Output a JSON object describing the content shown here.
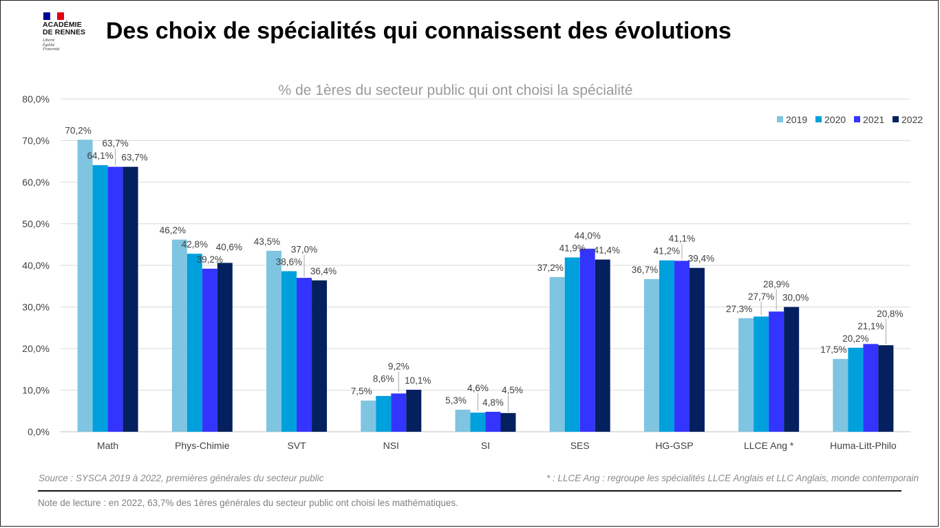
{
  "logo": {
    "name": "ACADÉMIE\nDE RENNES",
    "motto": "Liberté\nÉgalité\nFraternité",
    "flag_colors": [
      "#000091",
      "#ffffff",
      "#e1000f"
    ]
  },
  "page": {
    "title": "Des choix de spécialités qui connaissent des évolutions"
  },
  "chart_data": {
    "type": "bar",
    "title": "% de 1ères du secteur public qui ont choisi la spécialité",
    "xlabel": "",
    "ylabel": "",
    "ylim": [
      0,
      80
    ],
    "yticks": [
      "0,0%",
      "10,0%",
      "20,0%",
      "30,0%",
      "40,0%",
      "50,0%",
      "60,0%",
      "70,0%",
      "80,0%"
    ],
    "grid": true,
    "legend_position": "top-right",
    "categories": [
      "Math",
      "Phys-Chimie",
      "SVT",
      "NSI",
      "SI",
      "SES",
      "HG-GSP",
      "LLCE Ang *",
      "Huma-Litt-Philo"
    ],
    "series": [
      {
        "name": "2019",
        "color": "#7fc4e0",
        "values": [
          70.2,
          46.2,
          43.5,
          7.5,
          5.3,
          37.2,
          36.7,
          27.3,
          17.5
        ],
        "labels": [
          "70,2%",
          "46,2%",
          "43,5%",
          "7,5%",
          "5,3%",
          "37,2%",
          "36,7%",
          "27,3%",
          "17,5%"
        ]
      },
      {
        "name": "2020",
        "color": "#00a0dc",
        "values": [
          64.1,
          42.8,
          38.6,
          8.6,
          4.6,
          41.9,
          41.2,
          27.7,
          20.2
        ],
        "labels": [
          "64,1%",
          "42,8%",
          "38,6%",
          "8,6%",
          "4,6%",
          "41,9%",
          "41,2%",
          "27,7%",
          "20,2%"
        ]
      },
      {
        "name": "2021",
        "color": "#3434ff",
        "values": [
          63.7,
          39.2,
          37.0,
          9.2,
          4.8,
          44.0,
          41.1,
          28.9,
          21.1
        ],
        "labels": [
          "63,7%",
          "39,2%",
          "37,0%",
          "9,2%",
          "4,8%",
          "44,0%",
          "41,1%",
          "28,9%",
          "21,1%"
        ]
      },
      {
        "name": "2022",
        "color": "#05205e",
        "values": [
          63.7,
          40.6,
          36.4,
          10.1,
          4.5,
          41.4,
          39.4,
          30.0,
          20.8
        ],
        "labels": [
          "63,7%",
          "40,6%",
          "36,4%",
          "10,1%",
          "4,5%",
          "41,4%",
          "39,4%",
          "30,0%",
          "20,8%"
        ]
      }
    ]
  },
  "footer": {
    "source": "Source : SYSCA 2019 à 2022, premières générales du secteur public",
    "footnote": "* : LLCE Ang : regroupe les spécialités LLCE Anglais et LLC Anglais, monde contemporain",
    "reading_note": "Note de lecture : en 2022, 63,7% des 1ères générales du secteur public ont choisi les mathématiques."
  }
}
